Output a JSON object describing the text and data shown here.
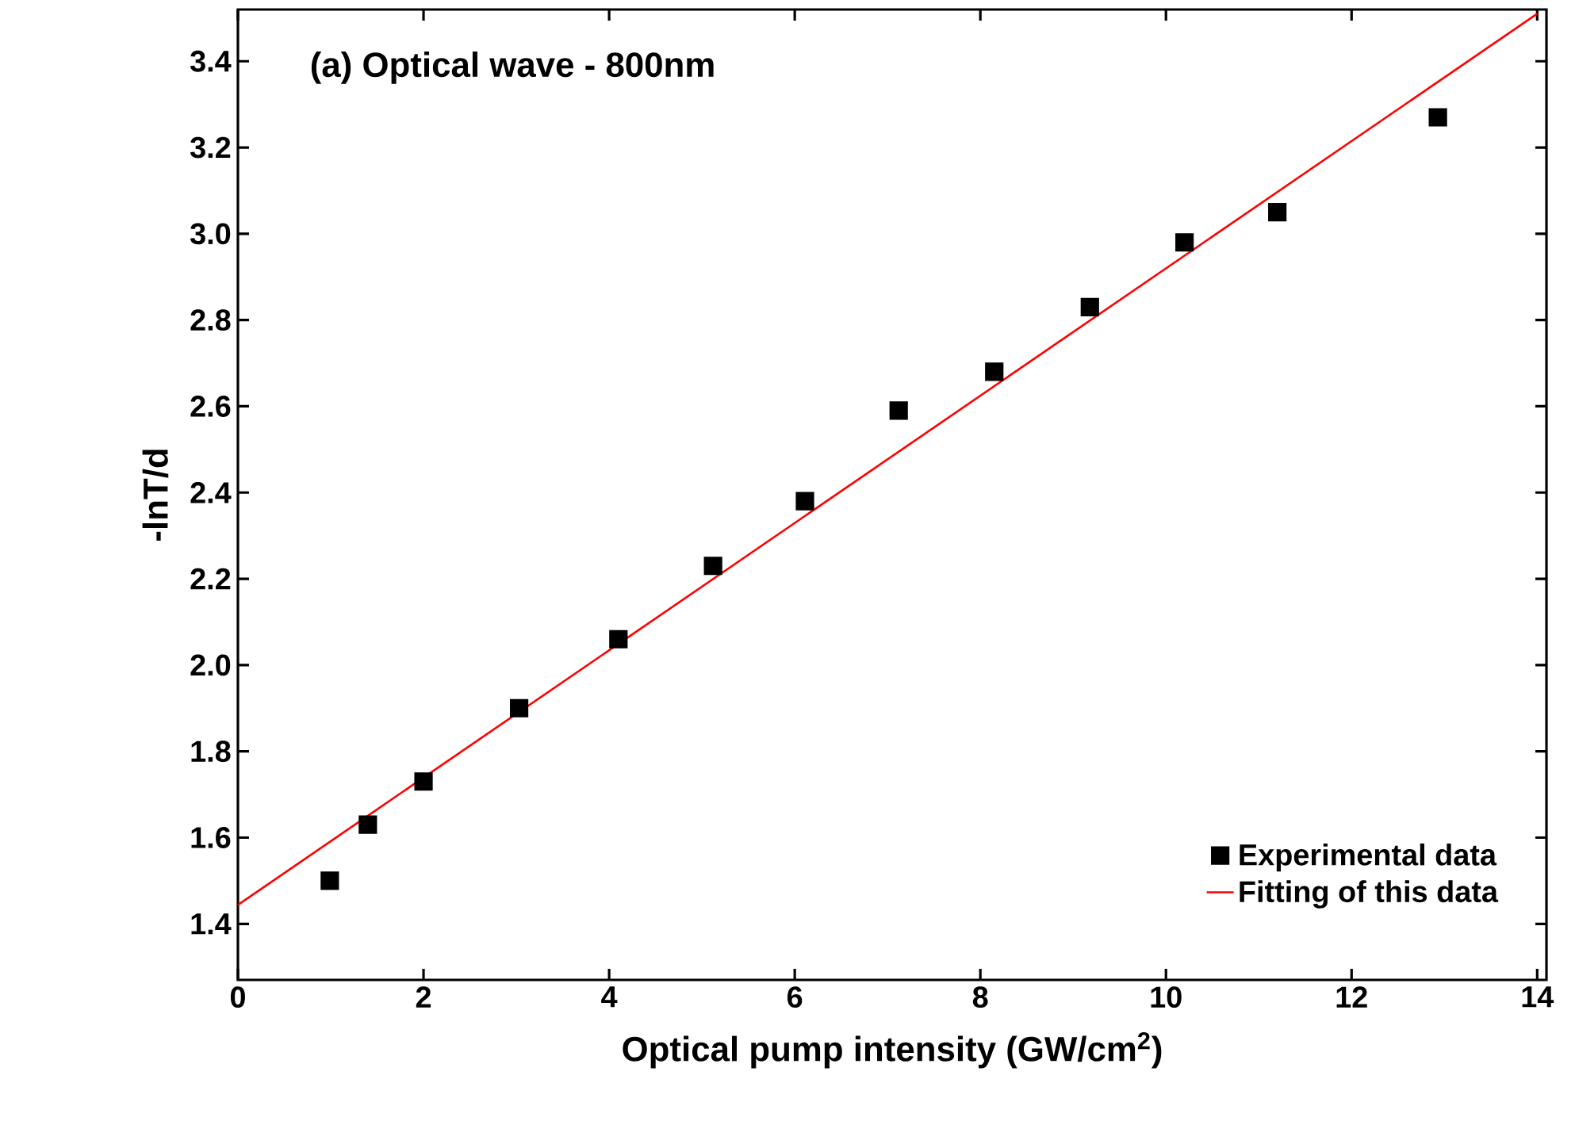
{
  "chart_data": {
    "type": "scatter",
    "xlabel": "Optical pump intensity (GW/cm$^{2}$)",
    "ylabel": "-lnT/d",
    "annotations": [
      "(a)  Optical wave - 800nm"
    ],
    "xlim": [
      0,
      14.1
    ],
    "ylim": [
      1.27,
      3.52
    ],
    "xticks": [
      0,
      2,
      4,
      6,
      8,
      10,
      12,
      14
    ],
    "yticks": [
      1.4,
      1.6,
      1.8,
      {
        "value": 2,
        "label": "2.0"
      },
      2.2,
      2.4,
      2.6,
      2.8,
      {
        "value": 3,
        "label": "3.0"
      },
      3.2,
      3.4
    ],
    "legend": "bottom right",
    "series": [
      {
        "name": "Experimental data",
        "marker": "square",
        "color": "#000000",
        "x": [
          0.99,
          1.4,
          2.0,
          3.03,
          4.1,
          5.12,
          6.11,
          7.12,
          8.15,
          9.18,
          10.2,
          11.2,
          12.93
        ],
        "values": [
          1.5,
          1.63,
          1.73,
          1.9,
          2.06,
          2.23,
          2.38,
          2.59,
          2.68,
          2.83,
          2.98,
          3.05,
          3.27
        ]
      },
      {
        "name": "Fitting of this data",
        "type": "line",
        "marker": "none",
        "color": "#ff0000",
        "x": [
          0,
          14
        ],
        "values": [
          1.444,
          3.51
        ]
      }
    ]
  }
}
